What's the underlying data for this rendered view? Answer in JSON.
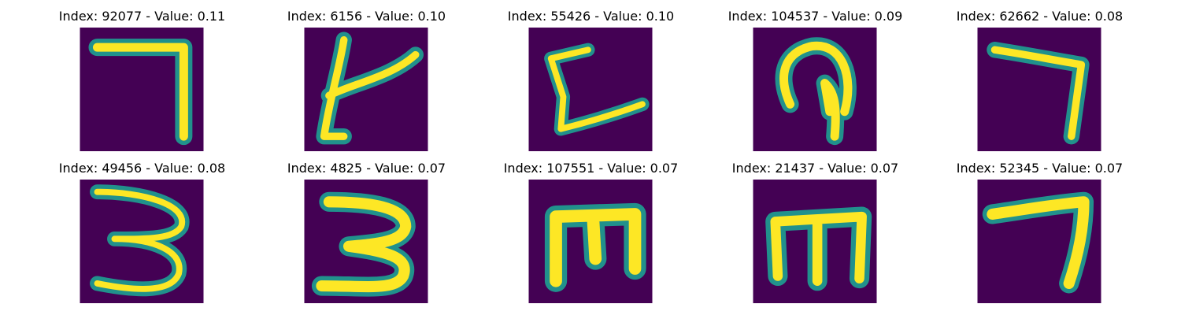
{
  "colors": {
    "background": "#440154",
    "stroke_mid": "#21918c",
    "stroke_hot": "#fde725"
  },
  "panels": [
    {
      "title": "Index: 92077 - Value: 0.11",
      "icon": "handwritten-7-glyph"
    },
    {
      "title": "Index: 6156 - Value: 0.10",
      "icon": "handwritten-k-like-glyph"
    },
    {
      "title": "Index: 55426 - Value: 0.10",
      "icon": "handwritten-c-like-glyph"
    },
    {
      "title": "Index: 104537 - Value: 0.09",
      "icon": "handwritten-loop-glyph"
    },
    {
      "title": "Index: 62662 - Value: 0.08",
      "icon": "handwritten-7-glyph"
    },
    {
      "title": "Index: 49456 - Value: 0.08",
      "icon": "handwritten-3-glyph"
    },
    {
      "title": "Index: 4825 - Value: 0.07",
      "icon": "handwritten-3-glyph"
    },
    {
      "title": "Index: 107551 - Value: 0.07",
      "icon": "handwritten-m-glyph"
    },
    {
      "title": "Index: 21437 - Value: 0.07",
      "icon": "handwritten-m-glyph"
    },
    {
      "title": "Index: 52345 - Value: 0.07",
      "icon": "handwritten-7-glyph"
    }
  ]
}
